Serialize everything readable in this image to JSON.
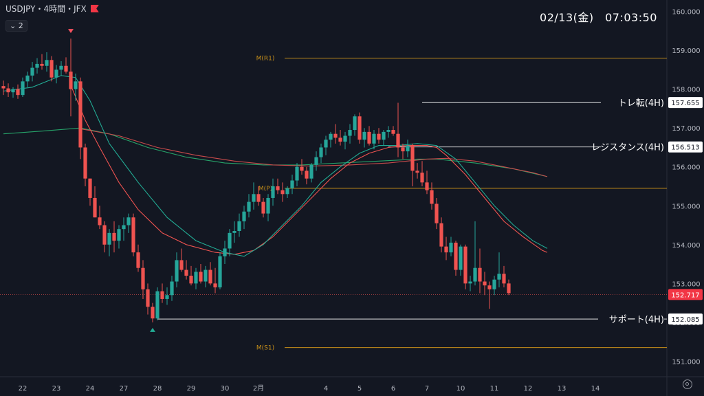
{
  "header": {
    "symbol": "USDJPY・4時間・JFX",
    "indicator_count": "2"
  },
  "datetime": "02/13(金)　07:03:50",
  "colors": {
    "up": "#26a69a",
    "down": "#ef5350",
    "ma_fast": "#22ab94",
    "ma_slow": "#ef5350",
    "ma_long": "#26a269",
    "pivot": "#c8901a",
    "level": "#ffffff"
  },
  "chart_data": {
    "type": "candlestick",
    "ylim": [
      150.6,
      160.4
    ],
    "y_ticks": [
      151.0,
      152.0,
      153.0,
      154.0,
      155.0,
      156.0,
      157.0,
      158.0,
      159.0,
      160.0
    ],
    "y_tick_labels": [
      "151.000",
      "152.000",
      "153.000",
      "154.000",
      "155.000",
      "156.000",
      "157.000",
      "158.000",
      "159.000",
      "160.000"
    ],
    "x_tick_labels": [
      {
        "label": "22",
        "index": 4
      },
      {
        "label": "23",
        "index": 11
      },
      {
        "label": "24",
        "index": 18
      },
      {
        "label": "27",
        "index": 25
      },
      {
        "label": "28",
        "index": 32
      },
      {
        "label": "29",
        "index": 39
      },
      {
        "label": "30",
        "index": 46
      },
      {
        "label": "2月",
        "index": 53
      },
      {
        "label": "4",
        "index": 67
      },
      {
        "label": "5",
        "index": 74
      },
      {
        "label": "6",
        "index": 81
      },
      {
        "label": "7",
        "index": 88
      },
      {
        "label": "10",
        "index": 95
      },
      {
        "label": "11",
        "index": 102
      },
      {
        "label": "12",
        "index": 109
      },
      {
        "label": "13",
        "index": 116
      },
      {
        "label": "14",
        "index": 123
      }
    ],
    "candles": [
      [
        158.08,
        158.22,
        157.85,
        158.02
      ],
      [
        158.02,
        158.15,
        157.8,
        157.92
      ],
      [
        157.92,
        158.05,
        157.78,
        158.0
      ],
      [
        158.0,
        158.12,
        157.75,
        157.85
      ],
      [
        157.85,
        158.3,
        157.8,
        158.2
      ],
      [
        158.2,
        158.45,
        158.05,
        158.35
      ],
      [
        158.35,
        158.7,
        158.2,
        158.55
      ],
      [
        158.55,
        158.8,
        158.4,
        158.65
      ],
      [
        158.65,
        158.9,
        158.5,
        158.6
      ],
      [
        158.6,
        158.95,
        158.45,
        158.75
      ],
      [
        158.75,
        158.85,
        158.2,
        158.3
      ],
      [
        158.3,
        158.62,
        158.15,
        158.5
      ],
      [
        158.5,
        158.72,
        158.35,
        158.6
      ],
      [
        158.6,
        158.82,
        158.4,
        158.45
      ],
      [
        158.45,
        159.3,
        157.3,
        158.0
      ],
      [
        158.0,
        158.4,
        157.7,
        158.2
      ],
      [
        158.2,
        158.3,
        156.2,
        156.5
      ],
      [
        156.5,
        156.6,
        155.5,
        155.7
      ],
      [
        155.7,
        155.7,
        155.0,
        155.2
      ],
      [
        155.2,
        155.5,
        154.7,
        154.7
      ],
      [
        154.7,
        155.0,
        154.4,
        154.5
      ],
      [
        154.5,
        154.6,
        153.8,
        154.0
      ],
      [
        154.0,
        154.4,
        153.7,
        154.3
      ],
      [
        154.3,
        154.6,
        153.8,
        154.1
      ],
      [
        154.1,
        154.5,
        153.9,
        154.4
      ],
      [
        154.4,
        154.7,
        154.1,
        154.5
      ],
      [
        154.5,
        154.8,
        154.3,
        154.7
      ],
      [
        154.7,
        154.8,
        153.7,
        153.8
      ],
      [
        153.8,
        154.0,
        153.3,
        153.4
      ],
      [
        153.4,
        153.6,
        152.6,
        152.85
      ],
      [
        152.85,
        153.0,
        152.2,
        152.4
      ],
      [
        152.4,
        152.5,
        152.0,
        152.1
      ],
      [
        152.1,
        152.9,
        152.05,
        152.8
      ],
      [
        152.8,
        153.0,
        152.5,
        152.6
      ],
      [
        152.6,
        152.9,
        152.45,
        152.7
      ],
      [
        152.7,
        153.2,
        152.55,
        153.05
      ],
      [
        153.05,
        153.8,
        152.9,
        153.6
      ],
      [
        153.6,
        153.9,
        153.3,
        153.35
      ],
      [
        153.35,
        153.6,
        153.1,
        153.2
      ],
      [
        153.2,
        153.45,
        152.95,
        153.0
      ],
      [
        153.0,
        153.4,
        152.85,
        153.3
      ],
      [
        153.3,
        153.5,
        153.0,
        153.05
      ],
      [
        153.05,
        153.45,
        152.9,
        153.35
      ],
      [
        153.35,
        153.55,
        152.95,
        153.0
      ],
      [
        153.0,
        153.4,
        152.75,
        152.9
      ],
      [
        152.9,
        153.8,
        152.85,
        153.7
      ],
      [
        153.7,
        154.1,
        153.5,
        153.9
      ],
      [
        153.9,
        154.4,
        153.7,
        154.3
      ],
      [
        154.3,
        154.6,
        154.05,
        154.35
      ],
      [
        154.35,
        154.8,
        154.2,
        154.6
      ],
      [
        154.6,
        155.0,
        154.4,
        154.85
      ],
      [
        154.85,
        155.3,
        154.7,
        155.1
      ],
      [
        155.1,
        155.6,
        154.9,
        155.3
      ],
      [
        155.3,
        155.5,
        155.0,
        155.1
      ],
      [
        155.1,
        155.2,
        154.7,
        154.8
      ],
      [
        154.8,
        155.3,
        154.6,
        155.2
      ],
      [
        155.2,
        155.7,
        155.0,
        155.5
      ],
      [
        155.5,
        155.7,
        155.3,
        155.4
      ],
      [
        155.4,
        155.6,
        155.1,
        155.3
      ],
      [
        155.3,
        155.5,
        155.2,
        155.45
      ],
      [
        155.45,
        155.8,
        155.3,
        155.65
      ],
      [
        155.65,
        156.1,
        155.5,
        156.0
      ],
      [
        156.0,
        156.2,
        155.8,
        155.9
      ],
      [
        155.9,
        156.0,
        155.55,
        155.7
      ],
      [
        155.7,
        156.1,
        155.6,
        156.05
      ],
      [
        156.05,
        156.4,
        155.9,
        156.25
      ],
      [
        156.25,
        156.6,
        156.1,
        156.5
      ],
      [
        156.5,
        156.8,
        156.3,
        156.7
      ],
      [
        156.7,
        156.9,
        156.5,
        156.85
      ],
      [
        156.85,
        157.1,
        156.6,
        156.75
      ],
      [
        156.75,
        156.95,
        156.55,
        156.65
      ],
      [
        156.65,
        156.9,
        156.45,
        156.8
      ],
      [
        156.8,
        157.1,
        156.6,
        156.95
      ],
      [
        156.95,
        157.35,
        156.8,
        157.3
      ],
      [
        157.3,
        157.4,
        156.6,
        156.7
      ],
      [
        156.7,
        157.0,
        156.5,
        156.9
      ],
      [
        156.9,
        157.05,
        156.55,
        156.6
      ],
      [
        156.6,
        156.95,
        156.45,
        156.85
      ],
      [
        156.85,
        157.0,
        156.6,
        156.7
      ],
      [
        156.7,
        156.95,
        156.55,
        156.9
      ],
      [
        156.9,
        157.05,
        156.75,
        156.95
      ],
      [
        156.95,
        157.05,
        156.8,
        156.85
      ],
      [
        156.85,
        157.65,
        156.25,
        156.5
      ],
      [
        156.5,
        156.6,
        156.2,
        156.4
      ],
      [
        156.4,
        156.7,
        156.25,
        156.55
      ],
      [
        156.55,
        156.6,
        155.5,
        155.9
      ],
      [
        155.9,
        156.1,
        155.7,
        155.85
      ],
      [
        155.85,
        156.15,
        155.5,
        155.6
      ],
      [
        155.6,
        155.9,
        155.3,
        155.4
      ],
      [
        155.4,
        155.6,
        154.9,
        155.05
      ],
      [
        155.05,
        155.2,
        154.4,
        154.55
      ],
      [
        154.55,
        154.7,
        153.8,
        153.95
      ],
      [
        153.95,
        154.2,
        153.6,
        153.8
      ],
      [
        153.8,
        154.2,
        153.7,
        154.05
      ],
      [
        154.05,
        154.1,
        153.2,
        153.35
      ],
      [
        153.35,
        154.0,
        153.2,
        153.95
      ],
      [
        153.95,
        154.0,
        152.85,
        153.0
      ],
      [
        153.0,
        153.2,
        152.8,
        153.05
      ],
      [
        153.05,
        154.6,
        152.95,
        153.4
      ],
      [
        153.4,
        153.9,
        152.75,
        153.05
      ],
      [
        153.05,
        153.3,
        152.7,
        152.95
      ],
      [
        152.95,
        153.05,
        152.35,
        152.85
      ],
      [
        152.85,
        153.2,
        152.7,
        153.1
      ],
      [
        153.1,
        153.8,
        152.9,
        153.25
      ],
      [
        153.25,
        153.45,
        152.9,
        153.0
      ],
      [
        153.0,
        153.1,
        152.7,
        152.75
      ]
    ],
    "ma_fast_values": [
      [
        0,
        157.95
      ],
      [
        6,
        158.05
      ],
      [
        12,
        158.35
      ],
      [
        15,
        158.3
      ],
      [
        18,
        157.7
      ],
      [
        22,
        156.6
      ],
      [
        28,
        155.6
      ],
      [
        34,
        154.7
      ],
      [
        40,
        154.1
      ],
      [
        46,
        153.8
      ],
      [
        50,
        153.7
      ],
      [
        54,
        154.0
      ],
      [
        58,
        154.5
      ],
      [
        62,
        155.0
      ],
      [
        66,
        155.6
      ],
      [
        70,
        156.0
      ],
      [
        74,
        156.35
      ],
      [
        78,
        156.55
      ],
      [
        82,
        156.55
      ],
      [
        86,
        156.6
      ],
      [
        90,
        156.55
      ],
      [
        94,
        156.2
      ],
      [
        98,
        155.6
      ],
      [
        102,
        155.0
      ],
      [
        106,
        154.5
      ],
      [
        110,
        154.1
      ],
      [
        113,
        153.9
      ]
    ],
    "ma_slow_values": [
      [
        14,
        158.1
      ],
      [
        17,
        157.2
      ],
      [
        20,
        156.5
      ],
      [
        24,
        155.6
      ],
      [
        28,
        154.9
      ],
      [
        33,
        154.3
      ],
      [
        38,
        154.0
      ],
      [
        44,
        153.8
      ],
      [
        48,
        153.75
      ],
      [
        52,
        153.85
      ],
      [
        56,
        154.2
      ],
      [
        60,
        154.7
      ],
      [
        64,
        155.2
      ],
      [
        68,
        155.7
      ],
      [
        72,
        156.1
      ],
      [
        76,
        156.35
      ],
      [
        80,
        156.5
      ],
      [
        84,
        156.55
      ],
      [
        88,
        156.55
      ],
      [
        90,
        156.5
      ],
      [
        92,
        156.3
      ],
      [
        96,
        155.8
      ],
      [
        100,
        155.2
      ],
      [
        104,
        154.6
      ],
      [
        108,
        154.2
      ],
      [
        112,
        153.85
      ],
      [
        113,
        153.8
      ]
    ],
    "ma_long_values": [
      [
        0,
        156.85
      ],
      [
        8,
        156.92
      ],
      [
        16,
        157.0
      ],
      [
        22,
        156.85
      ],
      [
        30,
        156.5
      ],
      [
        38,
        156.25
      ],
      [
        46,
        156.1
      ],
      [
        54,
        156.05
      ],
      [
        62,
        156.05
      ],
      [
        70,
        156.1
      ],
      [
        78,
        156.15
      ],
      [
        86,
        156.2
      ],
      [
        90,
        156.2
      ],
      [
        98,
        156.1
      ],
      [
        106,
        155.95
      ],
      [
        113,
        155.75
      ]
    ],
    "ma_slow2_values": [
      [
        16,
        156.98
      ],
      [
        24,
        156.8
      ],
      [
        32,
        156.5
      ],
      [
        40,
        156.3
      ],
      [
        48,
        156.15
      ],
      [
        56,
        156.05
      ],
      [
        64,
        156.02
      ],
      [
        72,
        156.05
      ],
      [
        80,
        156.1
      ],
      [
        88,
        156.2
      ],
      [
        92,
        156.22
      ],
      [
        98,
        156.15
      ],
      [
        104,
        156.0
      ],
      [
        110,
        155.85
      ],
      [
        113,
        155.75
      ]
    ],
    "levels": [
      {
        "name": "M(R1)",
        "value": 158.8,
        "kind": "pivot",
        "start": 53
      },
      {
        "name": "M(P)",
        "value": 155.45,
        "kind": "pivot",
        "start": 53
      },
      {
        "name": "M(S1)",
        "value": 151.35,
        "kind": "pivot",
        "start": 53
      },
      {
        "name": "トレ転(4H)",
        "value": 157.655,
        "kind": "level",
        "start": 87,
        "price_label": "157.655"
      },
      {
        "name": "レジスタンス(4H)",
        "value": 156.513,
        "kind": "level",
        "start": 80,
        "price_label": "156.513"
      },
      {
        "name": "サポート(4H)",
        "value": 152.085,
        "kind": "level",
        "start": 32,
        "price_label": "152.085"
      }
    ],
    "current_price": {
      "value": 152.717,
      "label": "152.717"
    },
    "markers": [
      {
        "index": 14,
        "dir": "down"
      },
      {
        "index": 31,
        "dir": "up"
      }
    ]
  }
}
